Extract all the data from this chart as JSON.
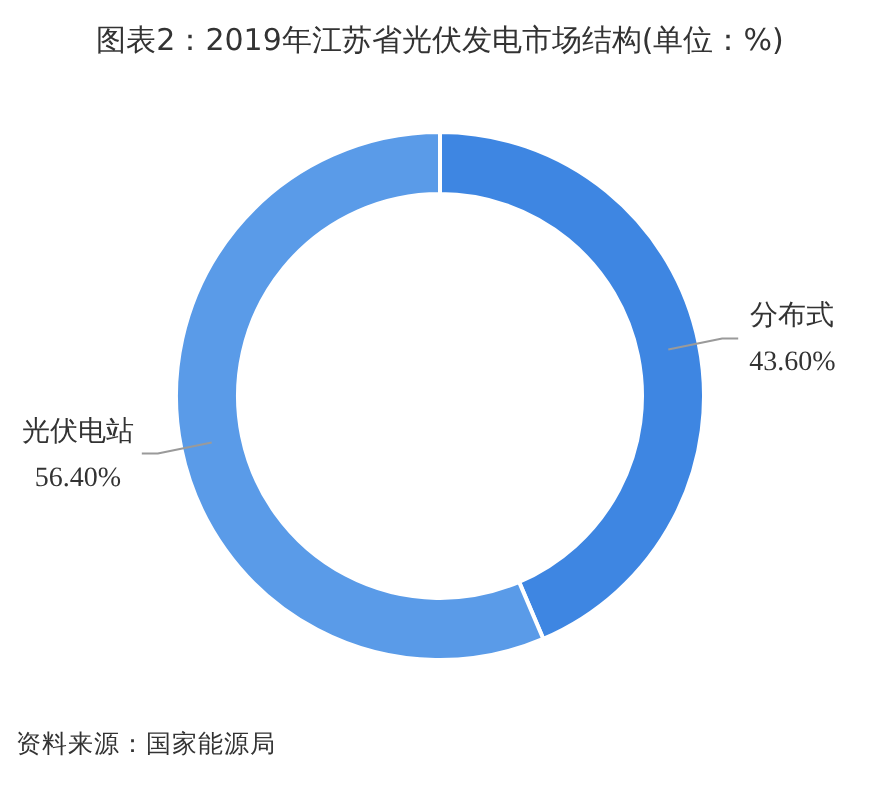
{
  "chart_data": {
    "type": "donut",
    "title": "图表2：2019年江苏省光伏发电市场结构(单位：%)",
    "categories": [
      "分布式",
      "光伏电站"
    ],
    "values": [
      43.6,
      56.4
    ],
    "colors": [
      "#3e86e2",
      "#5a9be8"
    ],
    "value_labels": [
      "43.60%",
      "56.40%"
    ],
    "annotations": [
      "资料来源：国家能源局"
    ]
  }
}
